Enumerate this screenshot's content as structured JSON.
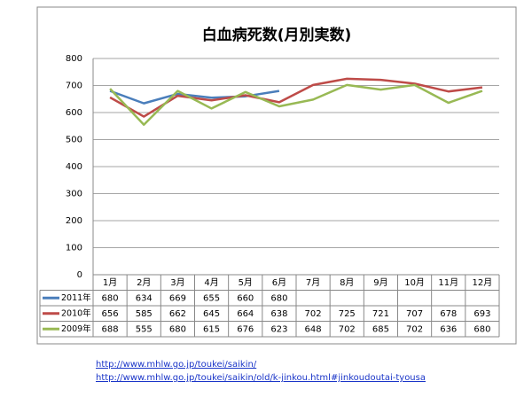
{
  "chart_data": {
    "type": "line",
    "title": "白血病死数(月別実数)",
    "categories": [
      "1月",
      "2月",
      "3月",
      "4月",
      "5月",
      "6月",
      "7月",
      "8月",
      "9月",
      "10月",
      "11月",
      "12月"
    ],
    "series": [
      {
        "name": "2011年",
        "color": "#4a7ebb",
        "values": [
          680,
          634,
          669,
          655,
          660,
          680,
          null,
          null,
          null,
          null,
          null,
          null
        ]
      },
      {
        "name": "2010年",
        "color": "#be4b48",
        "values": [
          656,
          585,
          662,
          645,
          664,
          638,
          702,
          725,
          721,
          707,
          678,
          693
        ]
      },
      {
        "name": "2009年",
        "color": "#98b954",
        "values": [
          688,
          555,
          680,
          615,
          676,
          623,
          648,
          702,
          685,
          702,
          636,
          680
        ]
      }
    ],
    "ylim": [
      0,
      800
    ],
    "yticks": [
      0,
      100,
      200,
      300,
      400,
      500,
      600,
      700,
      800
    ],
    "grid": true,
    "data_table": true
  },
  "links": [
    "http://www.mhlw.go.jp/toukei/saikin/",
    "http://www.mhlw.go.jp/toukei/saikin/old/k-jinkou.html#jinkoudoutai-tyousa"
  ]
}
